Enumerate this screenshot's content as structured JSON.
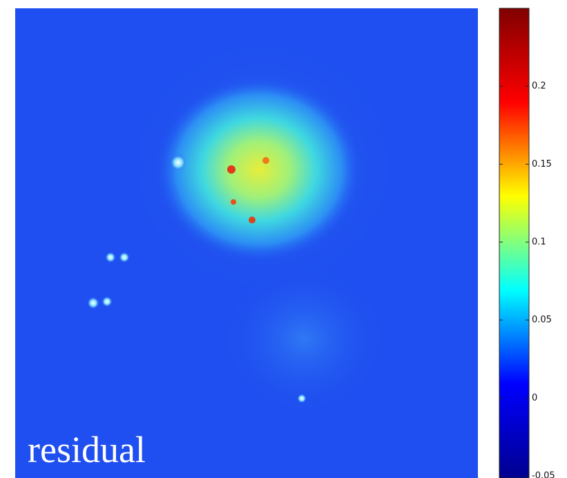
{
  "chart_data": {
    "type": "heatmap",
    "annotation": "residual",
    "colorbar": {
      "lim": [
        -0.05,
        0.25
      ],
      "ticks": [
        -0.05,
        0,
        0.05,
        0.1,
        0.15,
        0.2
      ],
      "colormap": "jet"
    }
  }
}
